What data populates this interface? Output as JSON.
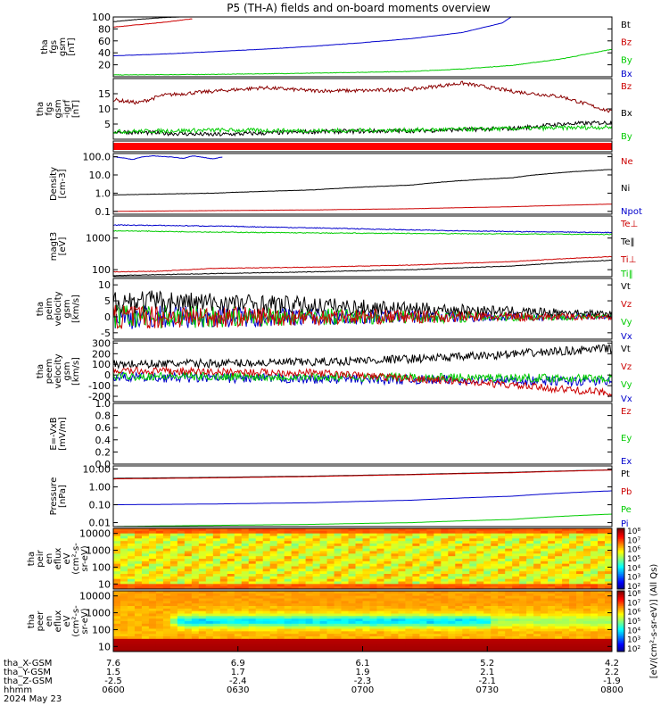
{
  "title": "P5 (TH-A) fields and on-board moments overview",
  "colors": {
    "black": "#000000",
    "red": "#cc0000",
    "blue": "#0000cc",
    "green": "#00cc00",
    "darkred": "#8b0000"
  },
  "chart_data": [
    {
      "id": "p1",
      "type": "line",
      "ylabel": [
        "tha",
        "fgs",
        "gsm",
        "[nT]"
      ],
      "ylim": [
        0,
        100
      ],
      "yticks": [
        "100",
        "80",
        "60",
        "40",
        "20"
      ],
      "ytick_values": [
        100,
        80,
        60,
        40,
        20
      ],
      "legend": [
        {
          "text": "Bt",
          "color": "#000000"
        },
        {
          "text": "Bz",
          "color": "#cc0000"
        },
        {
          "text": "By",
          "color": "#00cc00"
        },
        {
          "text": "Bx",
          "color": "#0000cc"
        }
      ],
      "series": [
        {
          "color": "#000000",
          "x": [
            0,
            0.05,
            0.1,
            0.13,
            0.16
          ],
          "y": [
            92,
            96,
            99,
            100,
            101
          ],
          "noise": 0.3
        },
        {
          "color": "#cc0000",
          "x": [
            0,
            0.05,
            0.1,
            0.13,
            0.16
          ],
          "y": [
            83,
            87,
            91,
            94,
            97
          ],
          "noise": 0.3
        },
        {
          "color": "#0000cc",
          "x": [
            0,
            0.1,
            0.2,
            0.3,
            0.4,
            0.5,
            0.6,
            0.7,
            0.78,
            0.8
          ],
          "y": [
            35,
            38,
            42,
            46,
            51,
            57,
            64,
            74,
            90,
            101
          ],
          "noise": 0.2
        },
        {
          "color": "#00cc00",
          "x": [
            0,
            0.2,
            0.4,
            0.6,
            0.7,
            0.8,
            0.9,
            1
          ],
          "y": [
            3,
            4,
            6,
            9,
            13,
            19,
            30,
            46
          ],
          "noise": 0.4
        }
      ]
    },
    {
      "id": "p2",
      "type": "line",
      "ylabel": [
        "tha",
        "fgs",
        "gsm",
        "-igrf",
        "[nT]"
      ],
      "ylim": [
        0,
        20
      ],
      "yticks": [
        "15",
        "10",
        "5"
      ],
      "ytick_values": [
        15,
        10,
        5
      ],
      "legend": [
        {
          "text": "Bz",
          "color": "#cc0000"
        },
        {
          "text": "Bx",
          "color": "#000000"
        },
        {
          "text": "By",
          "color": "#00cc00"
        }
      ],
      "series": [
        {
          "color": "#8b0000",
          "x": [
            0,
            0.05,
            0.1,
            0.2,
            0.3,
            0.4,
            0.5,
            0.6,
            0.7,
            0.8,
            0.9,
            0.95,
            1
          ],
          "y": [
            13,
            12,
            14.5,
            15.8,
            17,
            16,
            16,
            16.5,
            18.5,
            15.8,
            14,
            11.5,
            9
          ],
          "noise": 0.6
        },
        {
          "color": "#000000",
          "x": [
            0,
            0.2,
            0.4,
            0.6,
            0.8,
            0.9,
            1
          ],
          "y": [
            2.5,
            1.5,
            2.5,
            2.8,
            3.5,
            5,
            5.5
          ],
          "noise": 0.7
        },
        {
          "color": "#00cc00",
          "x": [
            0,
            0.2,
            0.4,
            0.6,
            0.8,
            1
          ],
          "y": [
            2.5,
            3,
            2.8,
            3,
            3.5,
            4
          ],
          "noise": 0.7
        }
      ]
    },
    {
      "id": "p3",
      "type": "area",
      "ylabel": [],
      "ylim": [
        0,
        1
      ],
      "yticks": [],
      "ytick_values": [],
      "legend": [],
      "series": [
        {
          "color": "#ff0000",
          "x": [
            0,
            1
          ],
          "y": [
            0.5,
            0.5
          ],
          "noise": 0
        }
      ]
    },
    {
      "id": "p4",
      "type": "line",
      "log": true,
      "ylabel": [
        "Density",
        "[cm-3]"
      ],
      "ylim": [
        0.07,
        150
      ],
      "yticks": [
        "100.0",
        "10.0",
        "1.0",
        "0.1"
      ],
      "ytick_values": [
        100,
        10,
        1,
        0.1
      ],
      "legend": [
        {
          "text": "Ne",
          "color": "#cc0000"
        },
        {
          "text": "Ni",
          "color": "#000000"
        },
        {
          "text": "Npot",
          "color": "#0000cc"
        }
      ],
      "series": [
        {
          "color": "#000000",
          "x": [
            0,
            0.2,
            0.4,
            0.6,
            0.8,
            1
          ],
          "y": [
            0.8,
            1.0,
            1.5,
            2.8,
            7,
            20
          ],
          "noise": 0.02
        },
        {
          "color": "#cc0000",
          "x": [
            0,
            0.2,
            0.4,
            0.6,
            0.8,
            1
          ],
          "y": [
            0.1,
            0.11,
            0.12,
            0.14,
            0.18,
            0.25
          ],
          "noise": 0.01
        },
        {
          "color": "#0000cc",
          "x": [
            0,
            0.04,
            0.06,
            0.08,
            0.12,
            0.14,
            0.16,
            0.2,
            0.22
          ],
          "y": [
            100,
            70,
            100,
            110,
            95,
            80,
            110,
            75,
            100
          ],
          "noise": 0.03
        }
      ]
    },
    {
      "id": "p5",
      "type": "line",
      "log": true,
      "ylabel": [
        "magt3",
        "[eV]"
      ],
      "ylim": [
        60,
        5000
      ],
      "yticks": [
        "1000",
        "100"
      ],
      "ytick_values": [
        1000,
        100
      ],
      "legend": [
        {
          "text": "Te⊥",
          "color": "#cc0000"
        },
        {
          "text": "Te‖",
          "color": "#000000"
        },
        {
          "text": "Ti⊥",
          "color": "#cc0000"
        },
        {
          "text": "Ti‖",
          "color": "#00cc00"
        }
      ],
      "series": [
        {
          "color": "#0000cc",
          "x": [
            0,
            0.2,
            0.4,
            0.6,
            0.8,
            1
          ],
          "y": [
            2600,
            2400,
            2100,
            1800,
            1600,
            1500
          ],
          "noise": 0.03
        },
        {
          "color": "#00cc00",
          "x": [
            0,
            0.2,
            0.4,
            0.6,
            0.8,
            1
          ],
          "y": [
            1700,
            1550,
            1450,
            1400,
            1350,
            1300
          ],
          "noise": 0.03
        },
        {
          "color": "#cc0000",
          "x": [
            0,
            0.1,
            0.2,
            0.4,
            0.6,
            0.8,
            1
          ],
          "y": [
            85,
            90,
            110,
            120,
            140,
            180,
            260
          ],
          "noise": 0.02
        },
        {
          "color": "#000000",
          "x": [
            0,
            0.2,
            0.4,
            0.6,
            0.8,
            1
          ],
          "y": [
            65,
            75,
            85,
            100,
            130,
            200
          ],
          "noise": 0.02
        }
      ]
    },
    {
      "id": "p6",
      "type": "line",
      "ylabel": [
        "tha",
        "peim",
        "velocity",
        "gsm",
        "[km/s]"
      ],
      "ylim": [
        -7,
        12
      ],
      "yticks": [
        "10",
        "5",
        "0",
        "-5"
      ],
      "ytick_values": [
        10,
        5,
        0,
        -5
      ],
      "legend": [
        {
          "text": "Vt",
          "color": "#000000"
        },
        {
          "text": "Vz",
          "color": "#cc0000"
        },
        {
          "text": "Vy",
          "color": "#00cc00"
        },
        {
          "text": "Vx",
          "color": "#0000cc"
        }
      ],
      "series": [
        {
          "color": "#0000cc",
          "x": [
            0,
            0.3,
            0.6,
            1
          ],
          "y": [
            0,
            0,
            0,
            0
          ],
          "noise": 4,
          "decay": true
        },
        {
          "color": "#00cc00",
          "x": [
            0,
            0.3,
            0.6,
            1
          ],
          "y": [
            0,
            0,
            0,
            0
          ],
          "noise": 4,
          "decay": true
        },
        {
          "color": "#000000",
          "x": [
            0,
            0.3,
            0.6,
            1
          ],
          "y": [
            5,
            4,
            2.5,
            1
          ],
          "noise": 4,
          "decay": true
        },
        {
          "color": "#cc0000",
          "x": [
            0,
            0.3,
            0.6,
            1
          ],
          "y": [
            0,
            0,
            0,
            0
          ],
          "noise": 4,
          "decay": true
        }
      ]
    },
    {
      "id": "p7",
      "type": "line",
      "ylabel": [
        "tha",
        "peem",
        "velocity",
        "gsm",
        "[km/s]"
      ],
      "ylim": [
        -250,
        320
      ],
      "yticks": [
        "300",
        "200",
        "100",
        "0",
        "-100",
        "-200"
      ],
      "ytick_values": [
        300,
        200,
        100,
        0,
        -100,
        -200
      ],
      "legend": [
        {
          "text": "Vt",
          "color": "#000000"
        },
        {
          "text": "Vz",
          "color": "#cc0000"
        },
        {
          "text": "Vy",
          "color": "#00cc00"
        },
        {
          "text": "Vx",
          "color": "#0000cc"
        }
      ],
      "series": [
        {
          "color": "#0000cc",
          "x": [
            0,
            0.5,
            1
          ],
          "y": [
            -20,
            -40,
            -60
          ],
          "noise": 45
        },
        {
          "color": "#00cc00",
          "x": [
            0,
            0.5,
            1
          ],
          "y": [
            -10,
            -20,
            -30
          ],
          "noise": 40
        },
        {
          "color": "#000000",
          "x": [
            0,
            0.4,
            0.7,
            1
          ],
          "y": [
            100,
            120,
            170,
            250
          ],
          "noise": 40
        },
        {
          "color": "#cc0000",
          "x": [
            0,
            0.4,
            0.7,
            1
          ],
          "y": [
            40,
            20,
            -60,
            -170
          ],
          "noise": 35
        }
      ]
    },
    {
      "id": "p8",
      "type": "line",
      "ylabel": [
        "E=-VxB",
        "[mV/m]"
      ],
      "ylim": [
        0,
        1
      ],
      "yticks": [
        "1.0",
        "0.8",
        "0.6",
        "0.4",
        "0.2",
        "0.0"
      ],
      "ytick_values": [
        1.0,
        0.8,
        0.6,
        0.4,
        0.2,
        0.0
      ],
      "legend": [
        {
          "text": "Ez",
          "color": "#cc0000"
        },
        {
          "text": "Ey",
          "color": "#00cc00"
        },
        {
          "text": "Ex",
          "color": "#0000cc"
        }
      ],
      "series": []
    },
    {
      "id": "p9",
      "type": "line",
      "log": true,
      "ylabel": [
        "Pressure",
        "[nPa]"
      ],
      "ylim": [
        0.006,
        15
      ],
      "yticks": [
        "10.00",
        "1.00",
        "0.10",
        "0.01"
      ],
      "ytick_values": [
        10,
        1,
        0.1,
        0.01
      ],
      "legend": [
        {
          "text": "Pt",
          "color": "#000000"
        },
        {
          "text": "Pb",
          "color": "#cc0000"
        },
        {
          "text": "Pe",
          "color": "#00cc00"
        },
        {
          "text": "Pi",
          "color": "#0000cc"
        }
      ],
      "series": [
        {
          "color": "#000000",
          "x": [
            0,
            0.2,
            0.4,
            0.6,
            0.8,
            1
          ],
          "y": [
            3,
            3.4,
            4,
            5,
            6.5,
            9
          ],
          "noise": 0
        },
        {
          "color": "#cc0000",
          "x": [
            0,
            0.2,
            0.4,
            0.6,
            0.8,
            1
          ],
          "y": [
            2.8,
            3.2,
            3.8,
            4.8,
            6.2,
            8.8
          ],
          "noise": 0
        },
        {
          "color": "#0000cc",
          "x": [
            0,
            0.2,
            0.4,
            0.6,
            0.8,
            1
          ],
          "y": [
            0.1,
            0.11,
            0.13,
            0.18,
            0.3,
            0.6
          ],
          "noise": 0
        },
        {
          "color": "#00cc00",
          "x": [
            0,
            0.2,
            0.4,
            0.6,
            0.8,
            1
          ],
          "y": [
            0.006,
            0.007,
            0.008,
            0.01,
            0.015,
            0.03
          ],
          "noise": 0
        }
      ]
    },
    {
      "id": "p10",
      "type": "heatmap",
      "log": true,
      "ylabel": [
        "tha",
        "peir",
        "en",
        "eflux",
        "eV",
        "(cm²-s-",
        "sr-eV)"
      ],
      "ylim": [
        5,
        20000
      ],
      "yticks": [
        "10000",
        "1000",
        "100",
        "10"
      ],
      "ytick_values": [
        10000,
        1000,
        100,
        10
      ],
      "legend": [],
      "series": []
    },
    {
      "id": "p11",
      "type": "heatmap",
      "log": true,
      "ylabel": [
        "tha",
        "peer",
        "en",
        "eflux",
        "eV",
        "(cm²-s-",
        "sr-eV)"
      ],
      "ylim": [
        5,
        20000
      ],
      "yticks": [
        "10000",
        "1000",
        "100",
        "10"
      ],
      "ytick_values": [
        10000,
        1000,
        100,
        10
      ],
      "legend": [],
      "series": []
    }
  ],
  "colorbar": {
    "labels1": [
      "10⁸",
      "10⁷",
      "10⁶",
      "10⁵",
      "10⁴",
      "10³",
      "10²"
    ],
    "labels2": [
      "10⁸",
      "10⁷",
      "10⁶",
      "10⁵",
      "10⁴",
      "10³",
      "10²"
    ],
    "caption": "[eV/(cm²-s-sr-eV)] (All Qs)"
  },
  "xaxis": {
    "labels": [
      "tha_X-GSM",
      "tha_Y-GSM",
      "tha_Z-GSM",
      "hhmm",
      "2024 May 23"
    ],
    "columns": [
      [
        "7.6",
        "1.5",
        "-2.5",
        "0600"
      ],
      [
        "6.9",
        "1.7",
        "-2.4",
        "0630"
      ],
      [
        "6.1",
        "1.9",
        "-2.3",
        "0700"
      ],
      [
        "5.2",
        "2.1",
        "-2.1",
        "0730"
      ],
      [
        "4.2",
        "2.2",
        "-1.9",
        "0800"
      ]
    ]
  }
}
